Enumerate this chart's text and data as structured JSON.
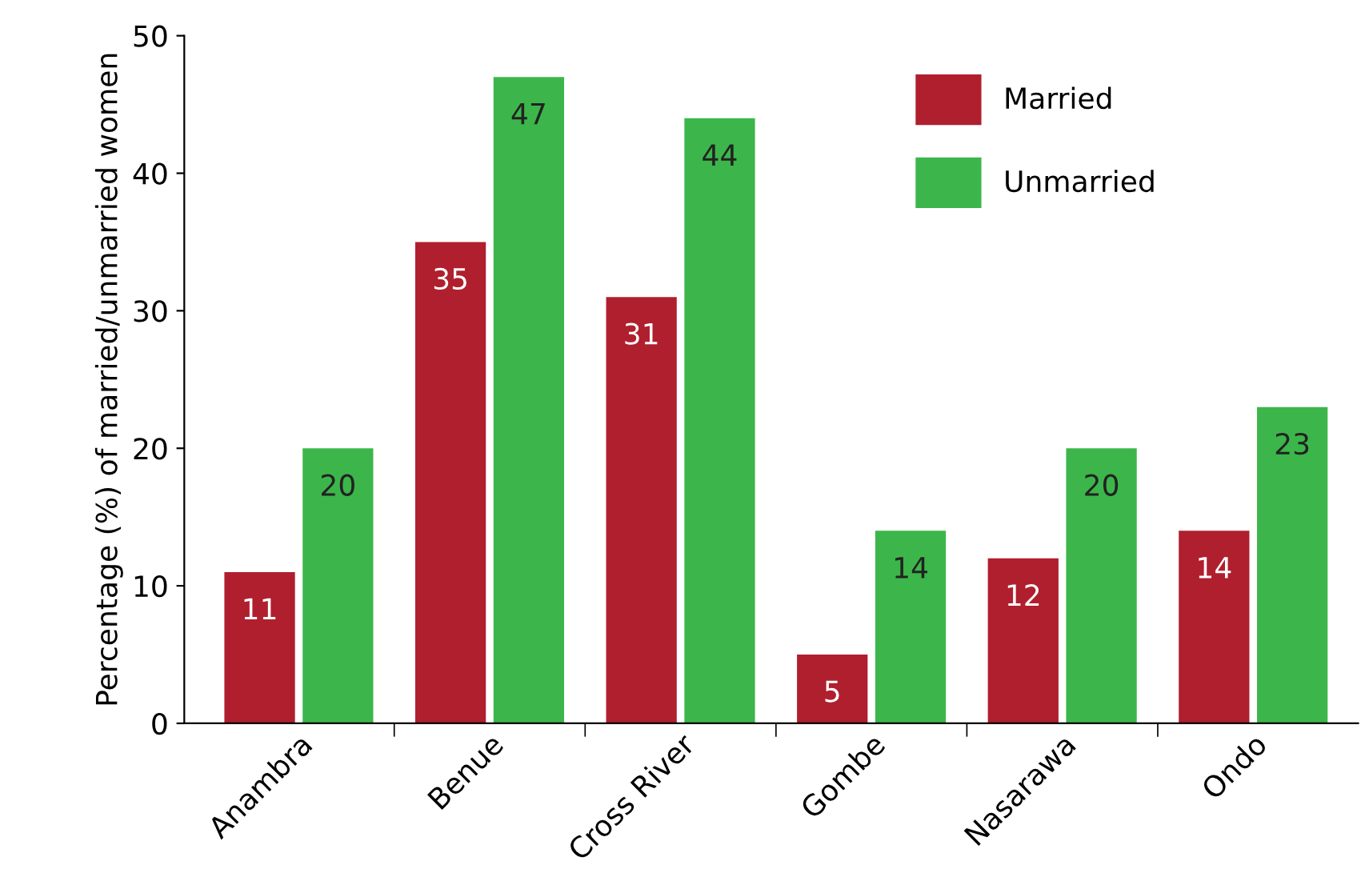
{
  "chart_data": {
    "type": "bar",
    "ylabel": "Percentage (%) of married/unmarried women",
    "categories": [
      "Anambra",
      "Benue",
      "Cross River",
      "Gombe",
      "Nasarawa",
      "Ondo"
    ],
    "series": [
      {
        "name": "Married",
        "color": "#b01f2e",
        "values": [
          11,
          35,
          31,
          5,
          12,
          14
        ]
      },
      {
        "name": "Unmarried",
        "color": "#3cb64a",
        "values": [
          20,
          47,
          44,
          14,
          20,
          23
        ]
      }
    ],
    "ylim": [
      0,
      50
    ],
    "yticks": [
      0,
      10,
      20,
      30,
      40,
      50
    ],
    "data_labels": true,
    "grid": false,
    "legend": "top right"
  }
}
